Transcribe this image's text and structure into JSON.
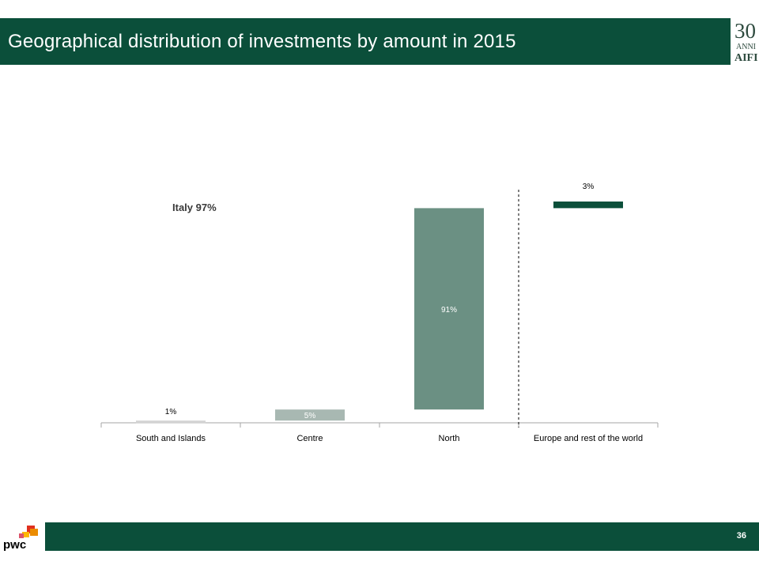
{
  "slide": {
    "title": "Geographical distribution of investments by amount in 2015",
    "page_number": "36",
    "logo_top_right": {
      "number": "30",
      "subtext": "ANNI",
      "brand": "AIFI"
    },
    "logo_bottom_left": "pwc"
  },
  "colors": {
    "header_green": "#0b4f3a",
    "north_bar": "#6b9083",
    "centre_bar": "#a8b8b2",
    "south_bar": "#d3d3d3",
    "europe_bar": "#0b4f3a"
  },
  "chart_data": {
    "type": "bar",
    "subtype": "waterfall",
    "categories": [
      "South and Islands",
      "Centre",
      "North",
      "Europe and rest of the world"
    ],
    "values": [
      1,
      5,
      91,
      3
    ],
    "data_labels": [
      "1%",
      "5%",
      "91%",
      "3%"
    ],
    "unit": "%",
    "annotation": "Italy 97%",
    "ylim": [
      0,
      100
    ],
    "grid": false,
    "legend": "none",
    "divider_between": [
      "North",
      "Europe and rest of the world"
    ]
  }
}
